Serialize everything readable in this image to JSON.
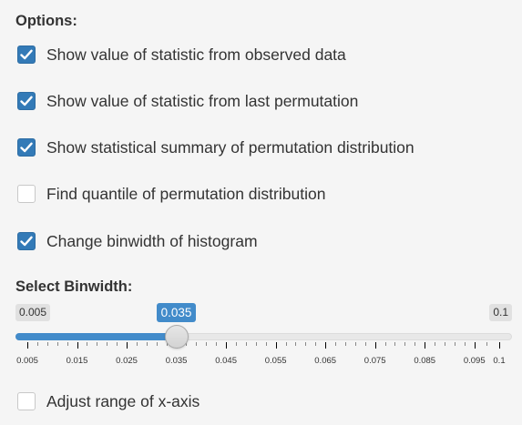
{
  "options": {
    "title": "Options:",
    "items": [
      {
        "label": "Show value of statistic from observed data",
        "checked": true
      },
      {
        "label": "Show value of statistic from last permutation",
        "checked": true
      },
      {
        "label": "Show statistical summary of permutation distribution",
        "checked": true
      },
      {
        "label": "Find quantile of permutation distribution",
        "checked": false
      },
      {
        "label": "Change binwidth of histogram",
        "checked": true
      }
    ]
  },
  "binwidth": {
    "title": "Select Binwidth:",
    "min_label": "0.005",
    "max_label": "0.1",
    "value_label": "0.035",
    "min": 0.005,
    "max": 0.1,
    "value": 0.035,
    "tick_labels": [
      "0.005",
      "0.015",
      "0.025",
      "0.035",
      "0.045",
      "0.055",
      "0.065",
      "0.075",
      "0.085",
      "0.095",
      "0.1"
    ]
  },
  "adjust_range": {
    "label": "Adjust range of x-axis",
    "checked": false
  },
  "colors": {
    "accent": "#337ab7",
    "slider_fill": "#428bca"
  }
}
